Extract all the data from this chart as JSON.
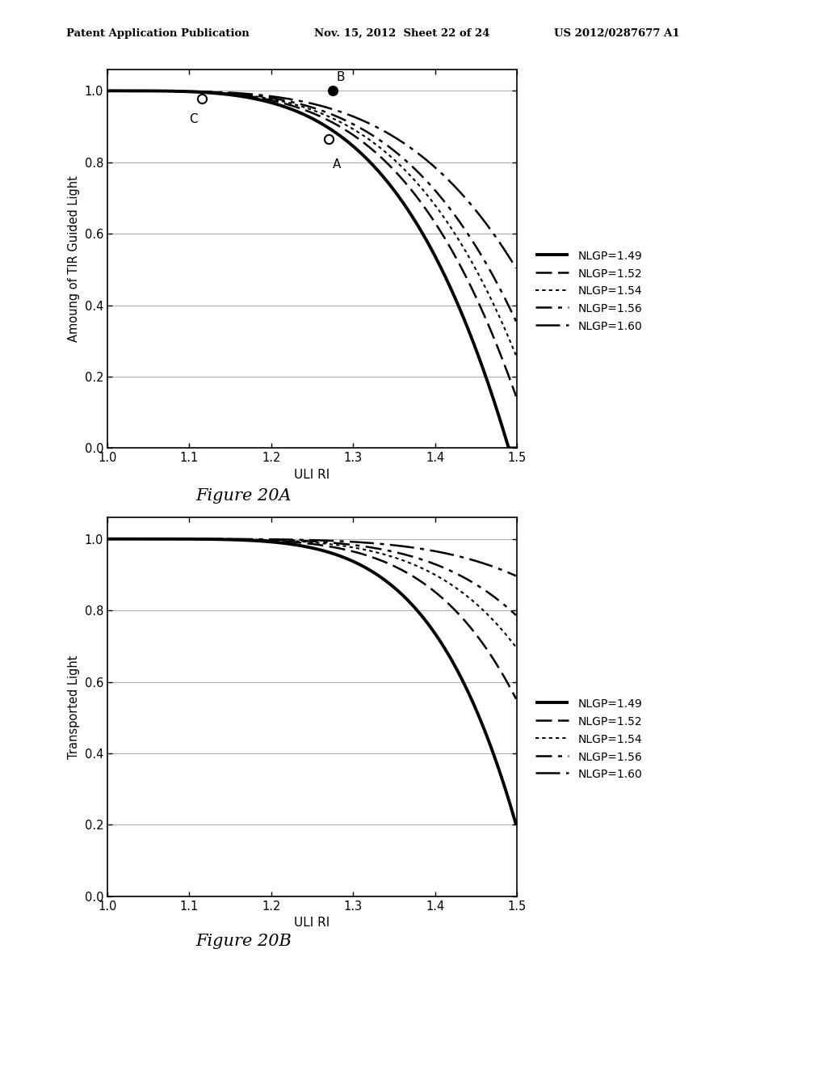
{
  "header_left": "Patent Application Publication",
  "header_mid": "Nov. 15, 2012  Sheet 22 of 24",
  "header_right": "US 2012/0287677 A1",
  "fig_a_title": "Figure 20A",
  "fig_b_title": "Figure 20B",
  "xlabel": "ULI RI",
  "ylabel_a": "Amoung of TIR Guided Light",
  "ylabel_b": "Transported Light",
  "xlim": [
    1.0,
    1.5
  ],
  "ylim": [
    0.0,
    1.06
  ],
  "xticks": [
    1.0,
    1.1,
    1.2,
    1.3,
    1.4,
    1.5
  ],
  "yticks": [
    0.0,
    0.2,
    0.4,
    0.6,
    0.8,
    1.0
  ],
  "nlgp_values": [
    1.49,
    1.52,
    1.54,
    1.56,
    1.6
  ],
  "legend_labels": [
    "NLGP=1.49",
    "NLGP=1.52",
    "NLGP=1.54",
    "NLGP=1.56",
    "NLGP=1.60"
  ],
  "point_A": [
    1.27,
    0.865
  ],
  "point_B": [
    1.275,
    1.0
  ],
  "point_C": [
    1.115,
    0.978
  ],
  "background_color": "#ffffff",
  "line_color": "#000000",
  "grid_color": "#b0b0b0"
}
